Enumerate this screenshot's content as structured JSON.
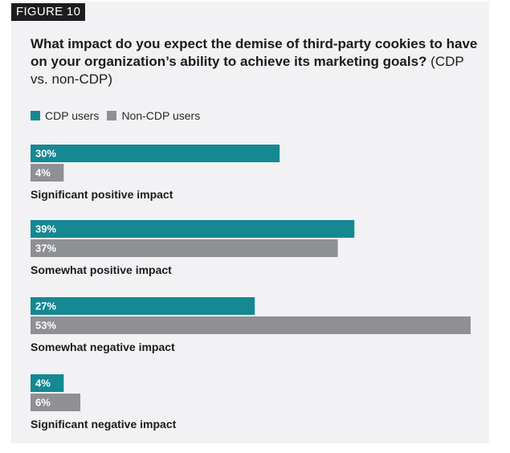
{
  "figure_label": "FIGURE 10",
  "title_bold": "What impact do you expect the demise of third-party cookies to have on your organization’s ability to achieve its marketing goals?",
  "title_normal": "(CDP vs. non-CDP)",
  "colors": {
    "cdp": "#168892",
    "non_cdp": "#8f9093",
    "panel": "#f2f2f4"
  },
  "chart_data": {
    "type": "bar",
    "orientation": "horizontal",
    "categories": [
      "Significant positive impact",
      "Somewhat positive impact",
      "Somewhat negative impact",
      "Significant negative impact"
    ],
    "series": [
      {
        "name": "CDP users",
        "values": [
          30,
          39,
          27,
          4
        ]
      },
      {
        "name": "Non-CDP users",
        "values": [
          4,
          37,
          53,
          6
        ]
      }
    ],
    "value_suffix": "%",
    "xlim": [
      0,
      53
    ],
    "legend": "top-left",
    "grid": false
  }
}
